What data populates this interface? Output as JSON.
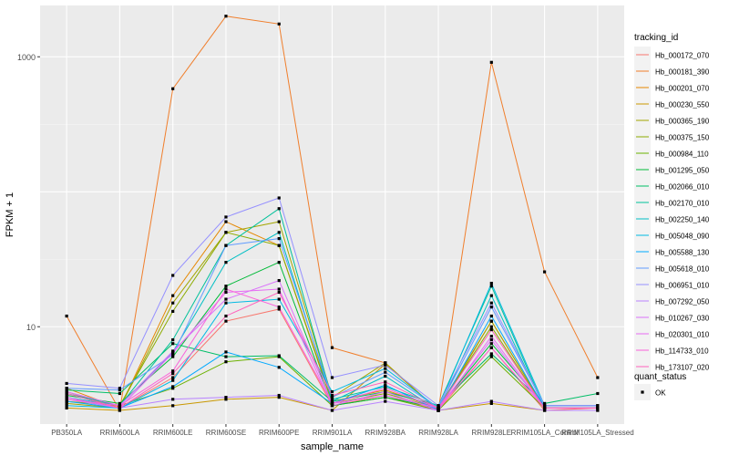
{
  "chart_data": {
    "type": "line",
    "xlabel": "sample_name",
    "ylabel": "FPKM + 1",
    "y_scale": "log10",
    "ylim": [
      1.9,
      2400
    ],
    "y_ticks": [
      10,
      1000
    ],
    "y_tick_labels": [
      "10",
      "1000"
    ],
    "categories": [
      "PB350LA",
      "RRIM600LA",
      "RRIM600LE",
      "RRIM600SE",
      "RRIM600PE",
      "RRIM901LA",
      "RRIM928BA",
      "RRIM928LA",
      "RRIM928LE",
      "RRIM105LA_Control",
      "RRIM105LA_Stressed"
    ],
    "legend_title": "tracking_id",
    "series": [
      {
        "name": "Hb_000172_070",
        "color": "#F8766D",
        "values": [
          3.3,
          2.5,
          4.2,
          11.0,
          13.5,
          2.6,
          3.1,
          2.4,
          7.0,
          2.4,
          2.5
        ]
      },
      {
        "name": "Hb_000181_390",
        "color": "#F07E2B",
        "values": [
          12.0,
          2.4,
          580,
          2000,
          1750,
          7.0,
          5.4,
          2.4,
          910,
          25.5,
          4.2
        ]
      },
      {
        "name": "Hb_000201_070",
        "color": "#E58700",
        "values": [
          3.5,
          2.5,
          17.0,
          60.0,
          40.0,
          2.8,
          3.4,
          2.5,
          11.0,
          2.5,
          2.5
        ]
      },
      {
        "name": "Hb_000230_550",
        "color": "#C99800",
        "values": [
          2.5,
          2.4,
          2.6,
          2.9,
          3.0,
          2.4,
          5.3,
          2.4,
          2.7,
          2.4,
          2.4
        ]
      },
      {
        "name": "Hb_000365_190",
        "color": "#A3A500",
        "values": [
          2.7,
          2.5,
          15.0,
          50.0,
          60.0,
          3.0,
          5.4,
          2.4,
          11.0,
          2.5,
          2.5
        ]
      },
      {
        "name": "Hb_000375_150",
        "color": "#8CAB00",
        "values": [
          2.8,
          2.6,
          13.0,
          50.0,
          40.0,
          2.7,
          3.2,
          2.5,
          10.0,
          2.5,
          2.5
        ]
      },
      {
        "name": "Hb_000984_110",
        "color": "#6BB100",
        "values": [
          2.9,
          2.6,
          3.5,
          5.5,
          6.0,
          2.6,
          3.0,
          2.4,
          6.0,
          2.5,
          2.5
        ]
      },
      {
        "name": "Hb_001295_050",
        "color": "#00BA38",
        "values": [
          3.1,
          2.7,
          6.0,
          20.0,
          30.0,
          2.6,
          3.0,
          2.5,
          7.5,
          2.6,
          2.6
        ]
      },
      {
        "name": "Hb_002066_010",
        "color": "#00BE67",
        "values": [
          3.4,
          3.2,
          7.5,
          6.0,
          6.1,
          2.8,
          3.3,
          2.6,
          6.3,
          2.7,
          3.2
        ]
      },
      {
        "name": "Hb_002170_010",
        "color": "#00C19A",
        "values": [
          3.2,
          2.6,
          8.0,
          40.0,
          75.0,
          2.9,
          3.6,
          2.6,
          20.0,
          2.5,
          2.5
        ]
      },
      {
        "name": "Hb_002250_140",
        "color": "#00BFC4",
        "values": [
          3.0,
          2.6,
          6.5,
          30.0,
          50.0,
          2.8,
          4.3,
          2.4,
          17.0,
          2.5,
          2.5
        ]
      },
      {
        "name": "Hb_005048_090",
        "color": "#00B9E3",
        "values": [
          2.6,
          2.5,
          4.0,
          15.0,
          16.0,
          3.3,
          4.9,
          2.5,
          21.0,
          2.6,
          2.6
        ]
      },
      {
        "name": "Hb_005588_130",
        "color": "#00A9FF",
        "values": [
          2.8,
          2.5,
          3.6,
          6.5,
          5.0,
          2.7,
          3.7,
          2.4,
          12.0,
          2.5,
          2.5
        ]
      },
      {
        "name": "Hb_005618_010",
        "color": "#619CFF",
        "values": [
          3.5,
          3.4,
          6.2,
          40.0,
          45.0,
          3.0,
          4.6,
          2.5,
          14.0,
          2.6,
          2.6
        ]
      },
      {
        "name": "Hb_006951_010",
        "color": "#9590FF",
        "values": [
          3.8,
          3.5,
          24.0,
          65.0,
          90.0,
          4.2,
          5.2,
          2.6,
          15.0,
          2.6,
          2.6
        ]
      },
      {
        "name": "Hb_007292_050",
        "color": "#B983FF",
        "values": [
          2.9,
          2.5,
          2.9,
          3.0,
          3.1,
          2.4,
          2.8,
          2.4,
          2.8,
          2.4,
          2.4
        ]
      },
      {
        "name": "Hb_010267_030",
        "color": "#DB72FB",
        "values": [
          3.3,
          2.6,
          6.6,
          16.0,
          22.0,
          2.7,
          3.1,
          2.5,
          8.0,
          2.5,
          2.5
        ]
      },
      {
        "name": "Hb_020301_010",
        "color": "#E76BF3",
        "values": [
          3.0,
          2.5,
          6.4,
          18.0,
          19.0,
          2.6,
          3.3,
          2.4,
          8.5,
          2.5,
          2.5
        ]
      },
      {
        "name": "Hb_114733_010",
        "color": "#FA62DB",
        "values": [
          2.9,
          2.6,
          4.7,
          19.0,
          14.0,
          2.7,
          3.5,
          2.5,
          7.0,
          2.5,
          2.5
        ]
      },
      {
        "name": "Hb_173107_020",
        "color": "#FF62BC",
        "values": [
          3.2,
          2.5,
          4.5,
          12.0,
          18.0,
          3.1,
          3.9,
          2.5,
          9.5,
          2.5,
          2.5
        ]
      }
    ],
    "shape_legend": {
      "title": "quant_status",
      "entries": [
        "OK"
      ]
    },
    "grid": true,
    "legend_position": "right"
  }
}
